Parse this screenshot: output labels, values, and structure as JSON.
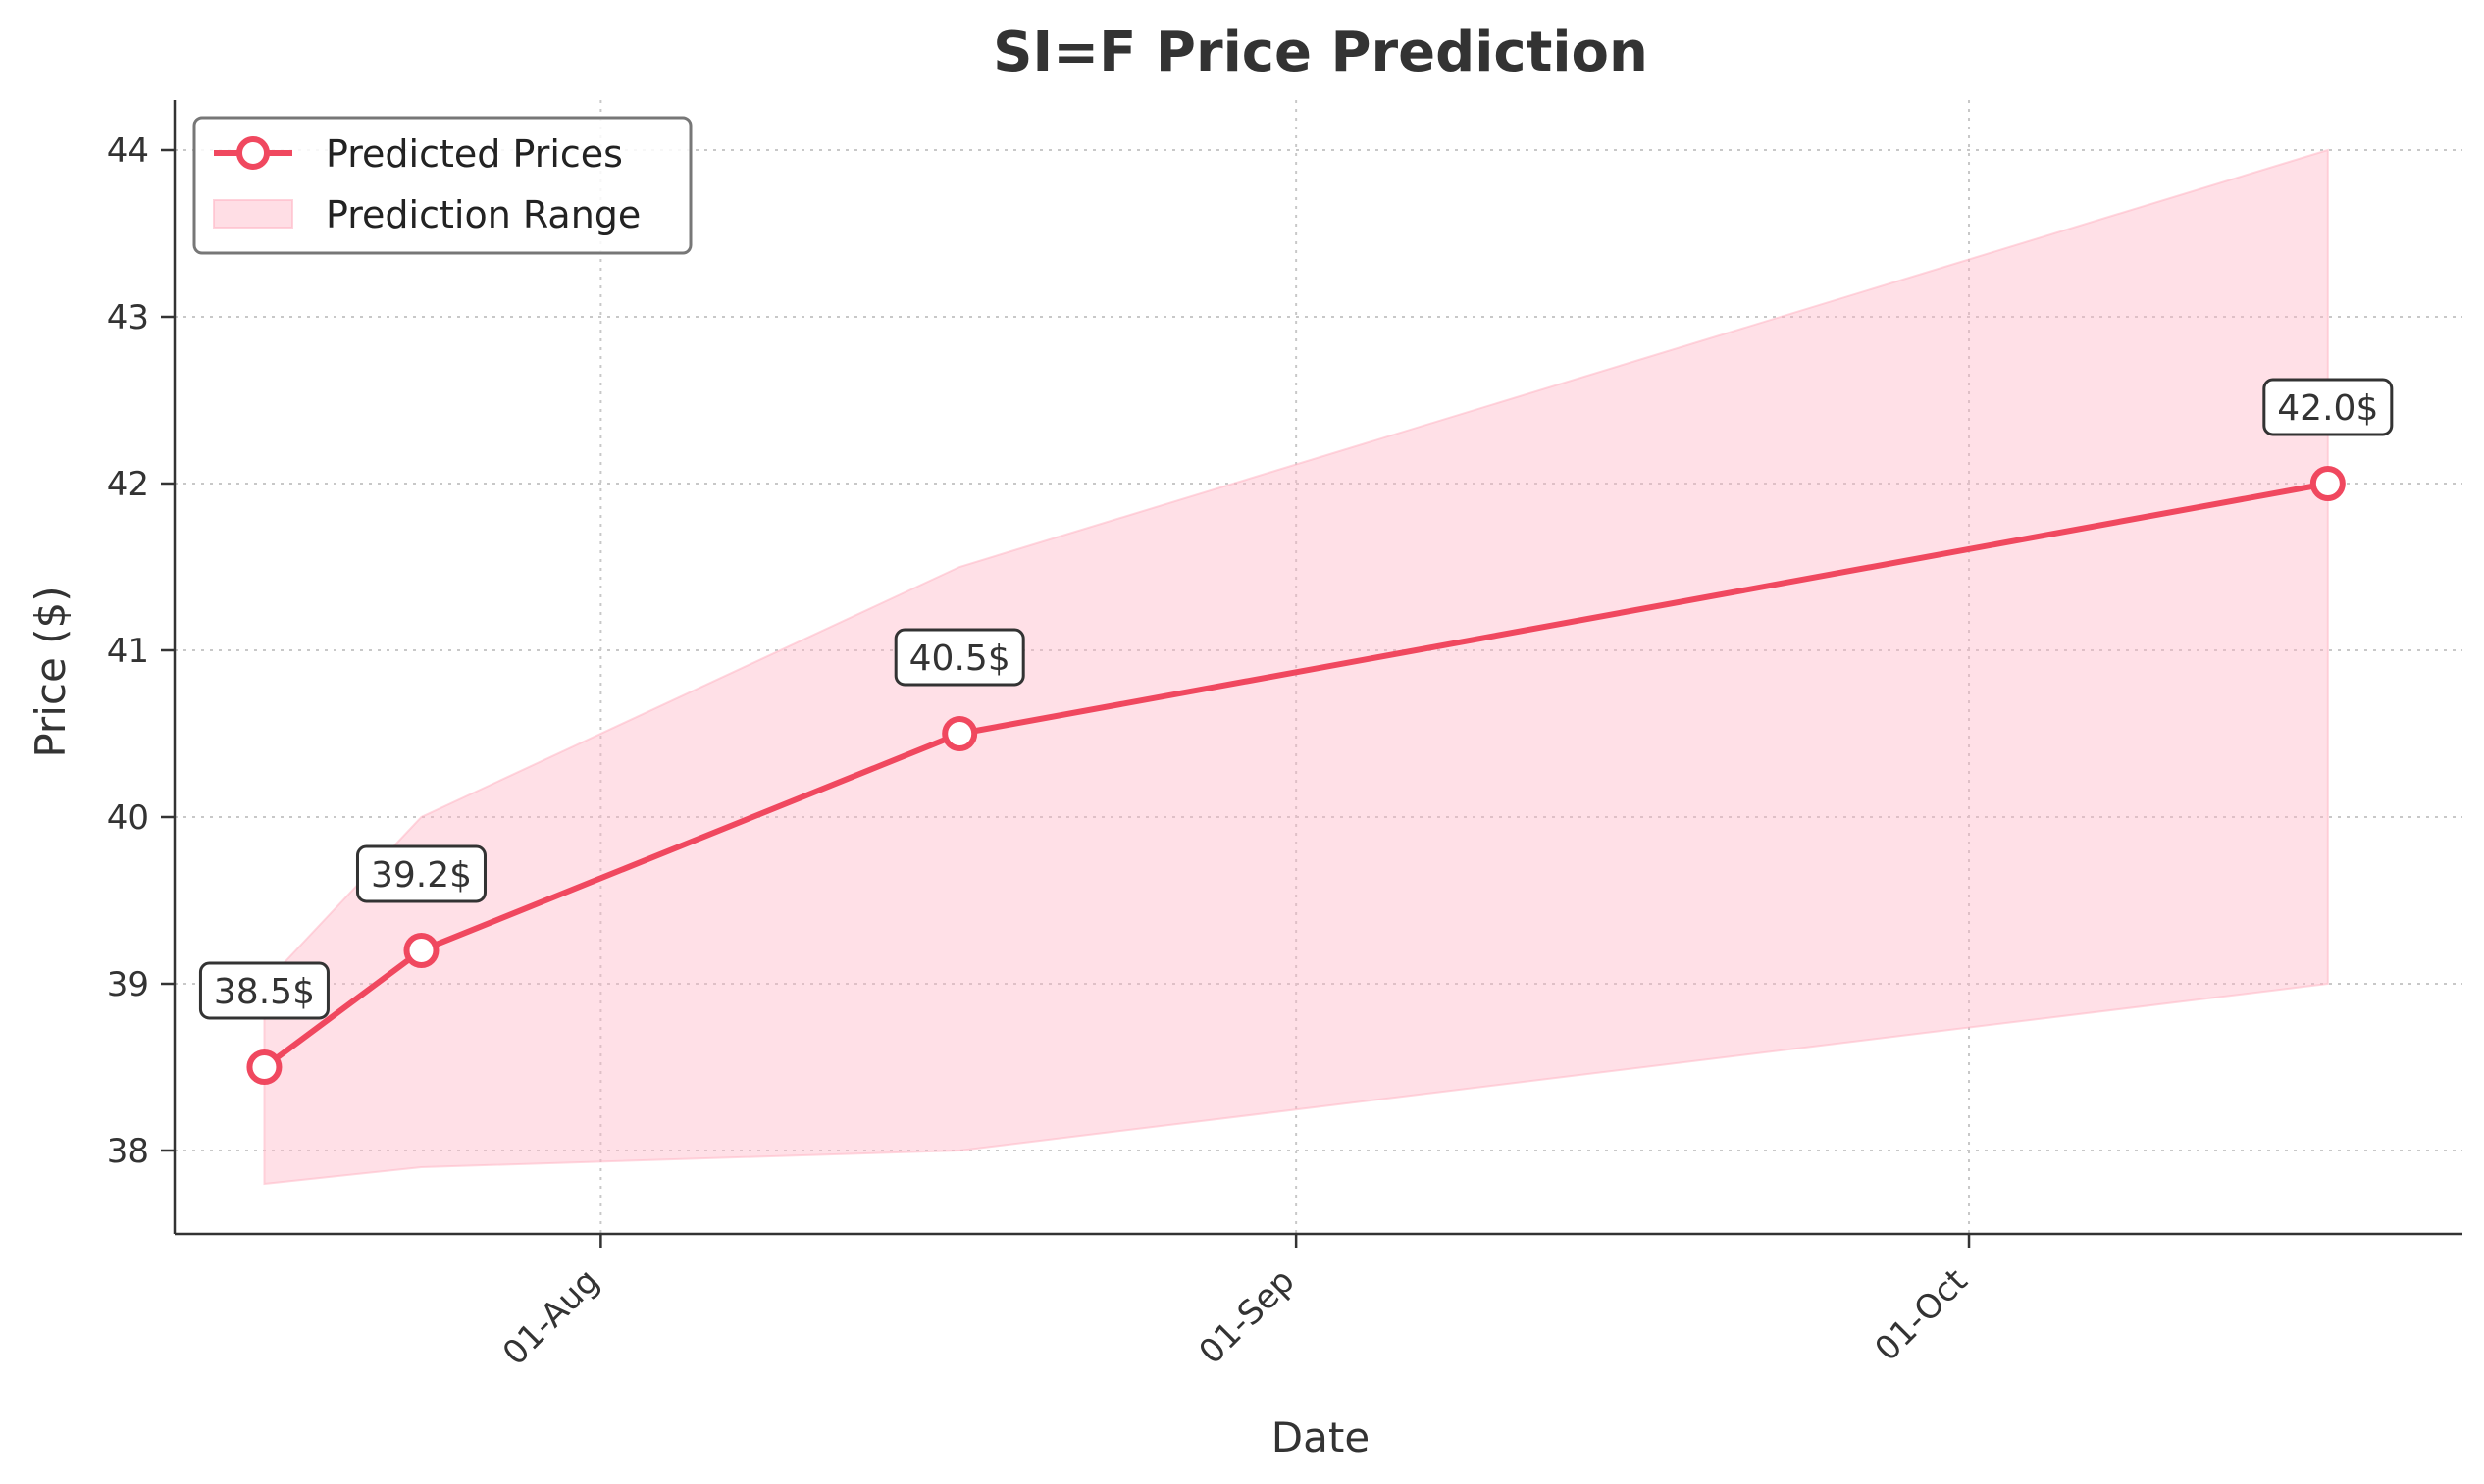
{
  "chart_data": {
    "type": "line",
    "title": "SI=F Price Prediction",
    "xlabel": "Date",
    "ylabel": "Price ($)",
    "x_ticks": [
      {
        "label": "01-Aug",
        "date": "2024-08-01"
      },
      {
        "label": "01-Sep",
        "date": "2024-09-01"
      },
      {
        "label": "01-Oct",
        "date": "2024-10-01"
      }
    ],
    "y_ticks": [
      38,
      39,
      40,
      41,
      42,
      43,
      44
    ],
    "xlim": [
      "2024-07-13",
      "2024-10-23"
    ],
    "ylim": [
      37.5,
      44.3
    ],
    "grid": true,
    "legend_position": "top-left",
    "series": [
      {
        "name": "Predicted Prices",
        "kind": "line",
        "color": "#f0485f",
        "points": [
          {
            "date": "2024-07-17",
            "value": 38.5,
            "label": "38.5$"
          },
          {
            "date": "2024-07-24",
            "value": 39.2,
            "label": "39.2$"
          },
          {
            "date": "2024-08-17",
            "value": 40.5,
            "label": "40.5$"
          },
          {
            "date": "2024-10-17",
            "value": 42.0,
            "label": "42.0$"
          }
        ]
      },
      {
        "name": "Prediction Range",
        "kind": "band",
        "color": "#ffb6c5",
        "points": [
          {
            "date": "2024-07-17",
            "lower": 37.8,
            "upper": 39.0
          },
          {
            "date": "2024-07-24",
            "lower": 37.9,
            "upper": 40.0
          },
          {
            "date": "2024-08-17",
            "lower": 38.0,
            "upper": 41.5
          },
          {
            "date": "2024-10-17",
            "lower": 39.0,
            "upper": 44.0
          }
        ]
      }
    ]
  }
}
